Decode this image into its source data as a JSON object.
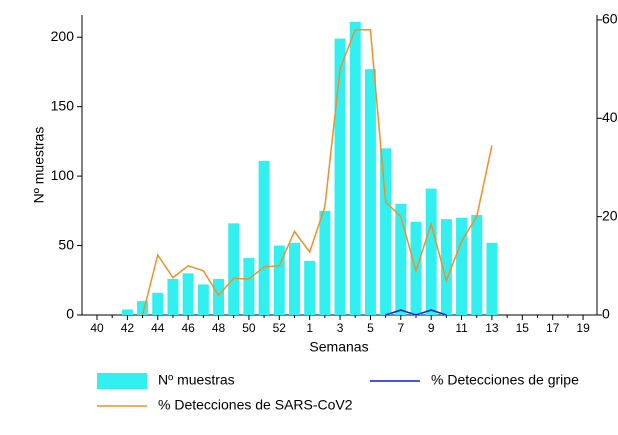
{
  "chart_data": {
    "type": "bar",
    "x_label": "Semanas",
    "y_label": "Nº muestras",
    "categories": [
      "40",
      null,
      "42",
      null,
      "44",
      null,
      "46",
      null,
      "48",
      null,
      "50",
      null,
      "52",
      null,
      "1",
      null,
      "3",
      null,
      "5",
      null,
      "7",
      null,
      "9",
      null,
      "11",
      null,
      "13",
      null,
      "15",
      null,
      "17",
      null,
      "19"
    ],
    "ylim": [
      0,
      216
    ],
    "yticks": [
      0,
      50,
      100,
      150,
      200
    ],
    "y2lim": [
      0,
      61
    ],
    "y2ticks": [
      0,
      20,
      40,
      60
    ],
    "series": [
      {
        "name": "Nº muestras",
        "type": "bar",
        "color": "#33f0f0",
        "values": [
          null,
          null,
          4,
          10,
          16,
          26,
          30,
          22,
          26,
          66,
          41,
          111,
          50,
          52,
          39,
          75,
          199,
          211,
          177,
          120,
          80,
          67,
          91,
          69,
          70,
          72,
          52,
          null,
          null,
          null,
          null,
          null,
          null
        ]
      },
      {
        "name": "% Detecciones de gripe",
        "type": "line",
        "axis": "y2",
        "color": "#0a1ee0",
        "values": [
          null,
          null,
          null,
          null,
          null,
          null,
          null,
          null,
          null,
          null,
          null,
          null,
          null,
          null,
          null,
          null,
          null,
          null,
          null,
          0,
          1,
          0,
          1,
          0,
          null,
          null,
          null,
          null,
          null,
          null,
          null,
          null,
          null
        ]
      },
      {
        "name": "% Detecciones de SARS-CoV2",
        "type": "line",
        "axis": "y2",
        "color": "#f0902a",
        "values": [
          null,
          null,
          null,
          0,
          12.2,
          7.6,
          10,
          9,
          4,
          7.5,
          7.3,
          9.8,
          10,
          17,
          12.8,
          22,
          50,
          58,
          58,
          23,
          20,
          9,
          18.5,
          7,
          15,
          20,
          34.5,
          null,
          null,
          null,
          null,
          null,
          null
        ]
      }
    ]
  }
}
